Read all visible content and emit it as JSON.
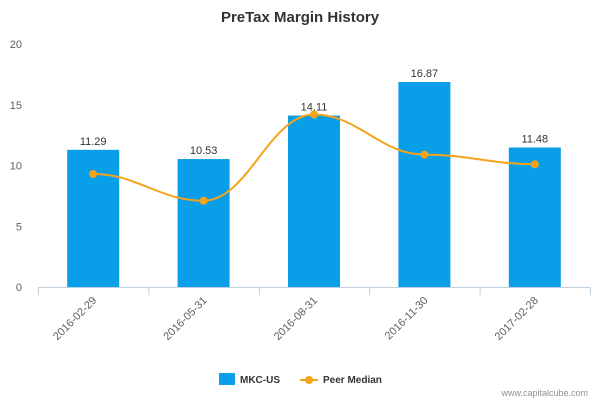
{
  "chart_data": {
    "type": "bar",
    "title": "PreTax Margin History",
    "categories": [
      "2016-02-29",
      "2016-05-31",
      "2016-08-31",
      "2016-11-30",
      "2017-02-28"
    ],
    "ylim": [
      0,
      20
    ],
    "yticks": [
      0,
      5,
      10,
      15,
      20
    ],
    "series": [
      {
        "name": "MKC-US",
        "type": "bar",
        "color": "#089ee8",
        "values": [
          11.29,
          10.53,
          14.11,
          16.87,
          11.48
        ],
        "labels": [
          "11.29",
          "10.53",
          "14.11",
          "16.87",
          "11.48"
        ]
      },
      {
        "name": "Peer Median",
        "type": "line",
        "color": "#f5a31a",
        "values": [
          9.3,
          7.1,
          14.2,
          10.9,
          10.1
        ]
      }
    ],
    "grid": false,
    "legend": "bottom-center"
  },
  "credit": "www.capitalcube.com"
}
